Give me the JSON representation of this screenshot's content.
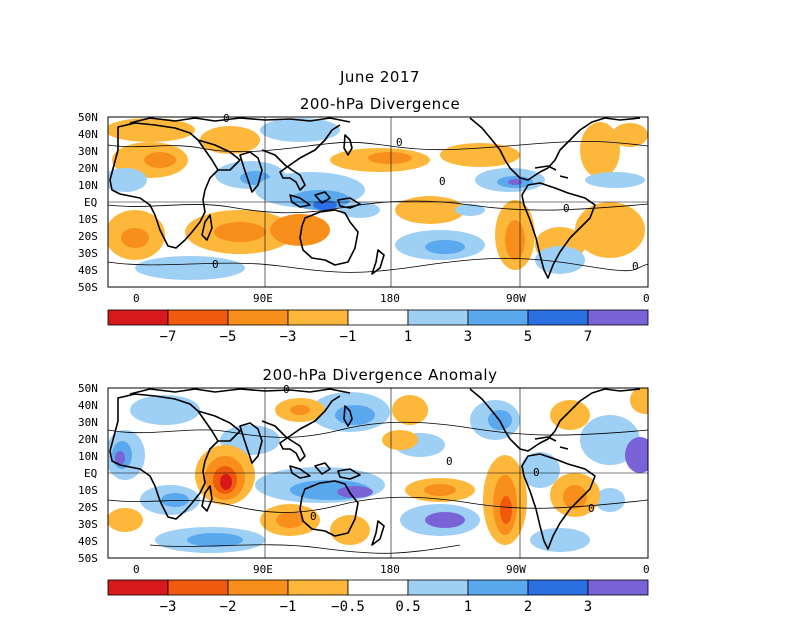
{
  "header": {
    "date": "June 2017"
  },
  "panels": [
    {
      "title": "200-hPa Divergence",
      "lat_labels": [
        "50N",
        "40N",
        "30N",
        "20N",
        "10N",
        "EQ",
        "10S",
        "20S",
        "30S",
        "40S",
        "50S"
      ],
      "lon_labels": [
        "0",
        "90E",
        "180",
        "90W",
        "0"
      ],
      "contour_labels": [
        "0",
        "0",
        "0",
        "0",
        "0",
        "0"
      ],
      "colorbar": {
        "colors": [
          "#d7191c",
          "#f05a0e",
          "#f98f1b",
          "#fdb83c",
          "#ffffff",
          "#9ecff5",
          "#5aa8ee",
          "#2b6fe2",
          "#7a63d6"
        ],
        "labels": [
          "−7",
          "−5",
          "−3",
          "−1",
          "1",
          "3",
          "5",
          "7"
        ]
      }
    },
    {
      "title": "200-hPa Divergence Anomaly",
      "lat_labels": [
        "50N",
        "40N",
        "30N",
        "20N",
        "10N",
        "EQ",
        "10S",
        "20S",
        "30S",
        "40S",
        "50S"
      ],
      "lon_labels": [
        "0",
        "90E",
        "180",
        "90W",
        "0"
      ],
      "contour_labels": [
        "0",
        "0",
        "0",
        "0",
        "0"
      ],
      "colorbar": {
        "colors": [
          "#d7191c",
          "#f05a0e",
          "#f98f1b",
          "#fdb83c",
          "#ffffff",
          "#9ecff5",
          "#5aa8ee",
          "#2b6fe2",
          "#7a63d6"
        ],
        "labels": [
          "−3",
          "−2",
          "−1",
          "−0.5",
          "0.5",
          "1",
          "2",
          "3"
        ]
      }
    }
  ],
  "palette": {
    "orange_light": "#fdb83c",
    "orange": "#f98f1b",
    "red_orange": "#f05a0e",
    "red": "#d7191c",
    "blue_light": "#9ecff5",
    "blue": "#5aa8ee",
    "blue_dark": "#2b6fe2",
    "purple": "#7a63d6"
  }
}
